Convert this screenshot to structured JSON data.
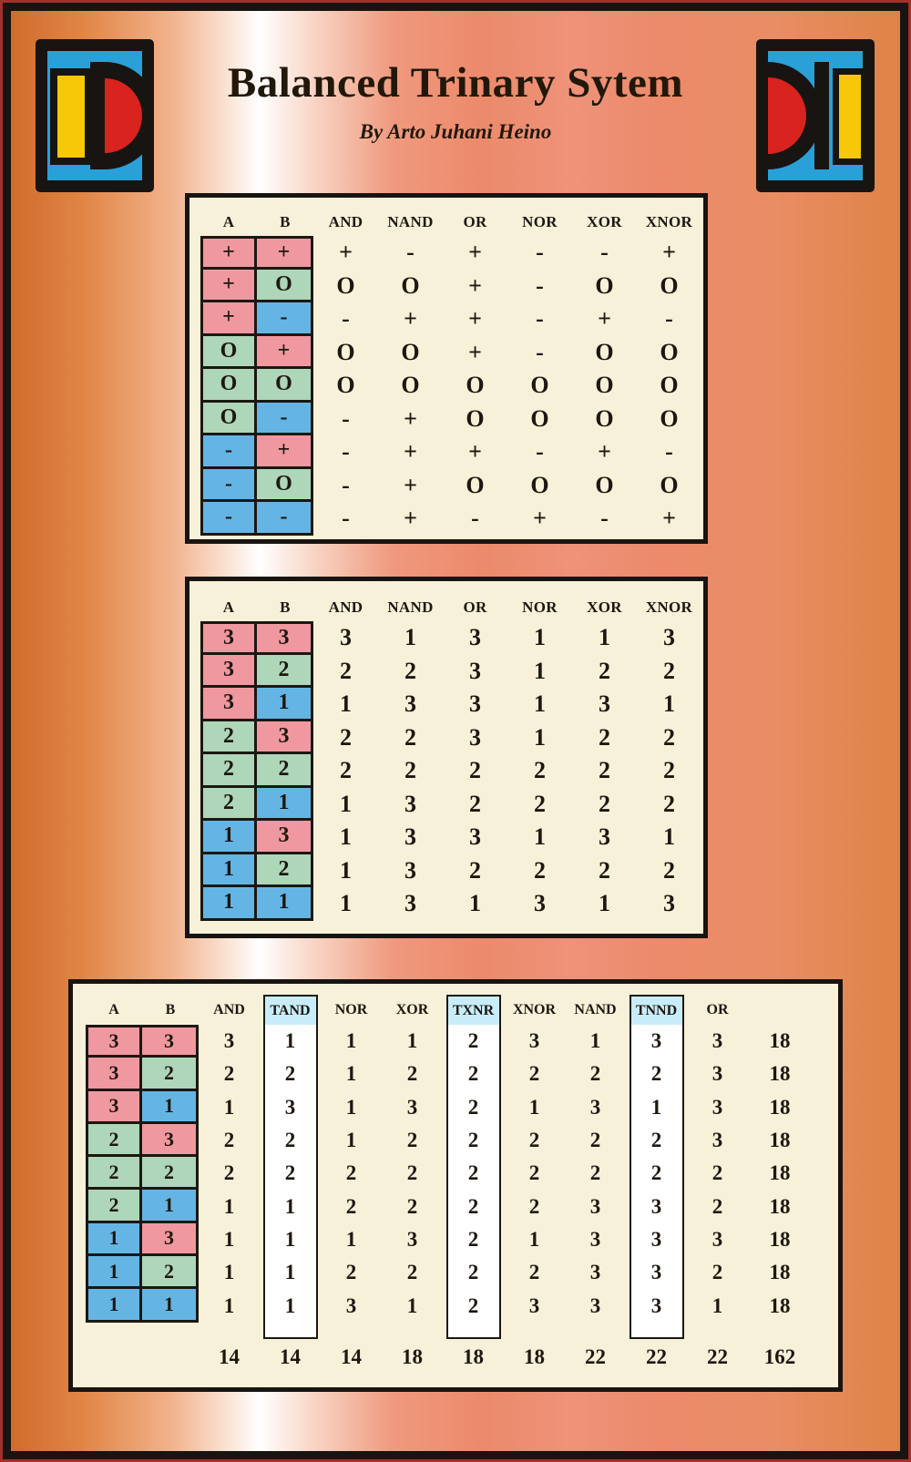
{
  "header": {
    "title": "Balanced Trinary Sytem",
    "subtitle": "By Arto Juhani Heino"
  },
  "colors": {
    "value_fill": {
      "+": "#f0989f",
      "O": "#aed6b8",
      "-": "#64b5e4",
      "3": "#f0989f",
      "2": "#aed6b8",
      "1": "#64b5e4"
    },
    "cream_panel": "#f6f1d8",
    "highlight_header": "#c9edf8",
    "highlight_body": "#ffffff",
    "border_black": "#181411",
    "outer_edge_red": "#a1312a",
    "logo_blue": "#2aa0d8",
    "logo_yellow": "#f6c807",
    "logo_red": "#d9231f"
  },
  "table1": {
    "headers": [
      "A",
      "B",
      "AND",
      "NAND",
      "OR",
      "NOR",
      "XOR",
      "XNOR"
    ],
    "rows": [
      {
        "a": "+",
        "b": "+",
        "values": [
          "+",
          "-",
          "+",
          "-",
          "-",
          "+"
        ]
      },
      {
        "a": "+",
        "b": "O",
        "values": [
          "O",
          "O",
          "+",
          "-",
          "O",
          "O"
        ]
      },
      {
        "a": "+",
        "b": "-",
        "values": [
          "-",
          "+",
          "+",
          "-",
          "+",
          "-"
        ]
      },
      {
        "a": "O",
        "b": "+",
        "values": [
          "O",
          "O",
          "+",
          "-",
          "O",
          "O"
        ]
      },
      {
        "a": "O",
        "b": "O",
        "values": [
          "O",
          "O",
          "O",
          "O",
          "O",
          "O"
        ]
      },
      {
        "a": "O",
        "b": "-",
        "values": [
          "-",
          "+",
          "O",
          "O",
          "O",
          "O"
        ]
      },
      {
        "a": "-",
        "b": "+",
        "values": [
          "-",
          "+",
          "+",
          "-",
          "+",
          "-"
        ]
      },
      {
        "a": "-",
        "b": "O",
        "values": [
          "-",
          "+",
          "O",
          "O",
          "O",
          "O"
        ]
      },
      {
        "a": "-",
        "b": "-",
        "values": [
          "-",
          "+",
          "-",
          "+",
          "-",
          "+"
        ]
      }
    ]
  },
  "table2": {
    "headers": [
      "A",
      "B",
      "AND",
      "NAND",
      "OR",
      "NOR",
      "XOR",
      "XNOR"
    ],
    "rows": [
      {
        "a": "3",
        "b": "3",
        "values": [
          "3",
          "1",
          "3",
          "1",
          "1",
          "3"
        ]
      },
      {
        "a": "3",
        "b": "2",
        "values": [
          "2",
          "2",
          "3",
          "1",
          "2",
          "2"
        ]
      },
      {
        "a": "3",
        "b": "1",
        "values": [
          "1",
          "3",
          "3",
          "1",
          "3",
          "1"
        ]
      },
      {
        "a": "2",
        "b": "3",
        "values": [
          "2",
          "2",
          "3",
          "1",
          "2",
          "2"
        ]
      },
      {
        "a": "2",
        "b": "2",
        "values": [
          "2",
          "2",
          "2",
          "2",
          "2",
          "2"
        ]
      },
      {
        "a": "2",
        "b": "1",
        "values": [
          "1",
          "3",
          "2",
          "2",
          "2",
          "2"
        ]
      },
      {
        "a": "1",
        "b": "3",
        "values": [
          "1",
          "3",
          "3",
          "1",
          "3",
          "1"
        ]
      },
      {
        "a": "1",
        "b": "2",
        "values": [
          "1",
          "3",
          "2",
          "2",
          "2",
          "2"
        ]
      },
      {
        "a": "1",
        "b": "1",
        "values": [
          "1",
          "3",
          "1",
          "3",
          "1",
          "3"
        ]
      }
    ]
  },
  "table3": {
    "headers": [
      "A",
      "B",
      "AND",
      "TAND",
      "NOR",
      "XOR",
      "TXNR",
      "XNOR",
      "NAND",
      "TNND",
      "OR",
      ""
    ],
    "highlight_columns": [
      "TAND",
      "TXNR",
      "TNND"
    ],
    "highlight_value_indexes": [
      1,
      4,
      7
    ],
    "rows": [
      {
        "a": "3",
        "b": "3",
        "values": [
          "3",
          "1",
          "1",
          "1",
          "2",
          "3",
          "1",
          "3",
          "3"
        ],
        "sum": "18"
      },
      {
        "a": "3",
        "b": "2",
        "values": [
          "2",
          "2",
          "1",
          "2",
          "2",
          "2",
          "2",
          "2",
          "3"
        ],
        "sum": "18"
      },
      {
        "a": "3",
        "b": "1",
        "values": [
          "1",
          "3",
          "1",
          "3",
          "2",
          "1",
          "3",
          "1",
          "3"
        ],
        "sum": "18"
      },
      {
        "a": "2",
        "b": "3",
        "values": [
          "2",
          "2",
          "1",
          "2",
          "2",
          "2",
          "2",
          "2",
          "3"
        ],
        "sum": "18"
      },
      {
        "a": "2",
        "b": "2",
        "values": [
          "2",
          "2",
          "2",
          "2",
          "2",
          "2",
          "2",
          "2",
          "2"
        ],
        "sum": "18"
      },
      {
        "a": "2",
        "b": "1",
        "values": [
          "1",
          "1",
          "2",
          "2",
          "2",
          "2",
          "3",
          "3",
          "2"
        ],
        "sum": "18"
      },
      {
        "a": "1",
        "b": "3",
        "values": [
          "1",
          "1",
          "1",
          "3",
          "2",
          "1",
          "3",
          "3",
          "3"
        ],
        "sum": "18"
      },
      {
        "a": "1",
        "b": "2",
        "values": [
          "1",
          "1",
          "2",
          "2",
          "2",
          "2",
          "3",
          "3",
          "2"
        ],
        "sum": "18"
      },
      {
        "a": "1",
        "b": "1",
        "values": [
          "1",
          "1",
          "3",
          "1",
          "2",
          "3",
          "3",
          "3",
          "1"
        ],
        "sum": "18"
      }
    ],
    "totals": [
      "14",
      "14",
      "14",
      "18",
      "18",
      "18",
      "22",
      "22",
      "22",
      "162"
    ]
  }
}
